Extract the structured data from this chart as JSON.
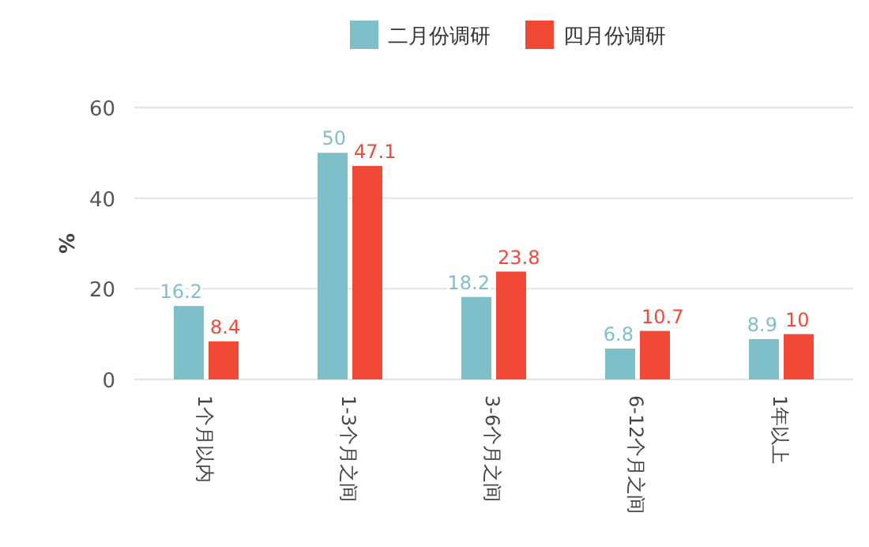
{
  "chart_data": {
    "type": "bar",
    "ylabel": "%",
    "categories": [
      "1个月以内",
      "1-3个月之间",
      "3-6个月之间",
      "6-12个月之间",
      "1年以上"
    ],
    "series": [
      {
        "name": "二月份调研",
        "color": "#7fbfca",
        "values": [
          16.2,
          50,
          18.2,
          6.8,
          8.9
        ]
      },
      {
        "name": "四月份调研",
        "color": "#f04a36",
        "values": [
          8.4,
          47.1,
          23.8,
          10.7,
          10
        ]
      }
    ],
    "ylim": [
      0,
      60
    ],
    "yticks": [
      0,
      20,
      40,
      60
    ],
    "grid": "y",
    "legend": "top",
    "data_labels": true
  }
}
